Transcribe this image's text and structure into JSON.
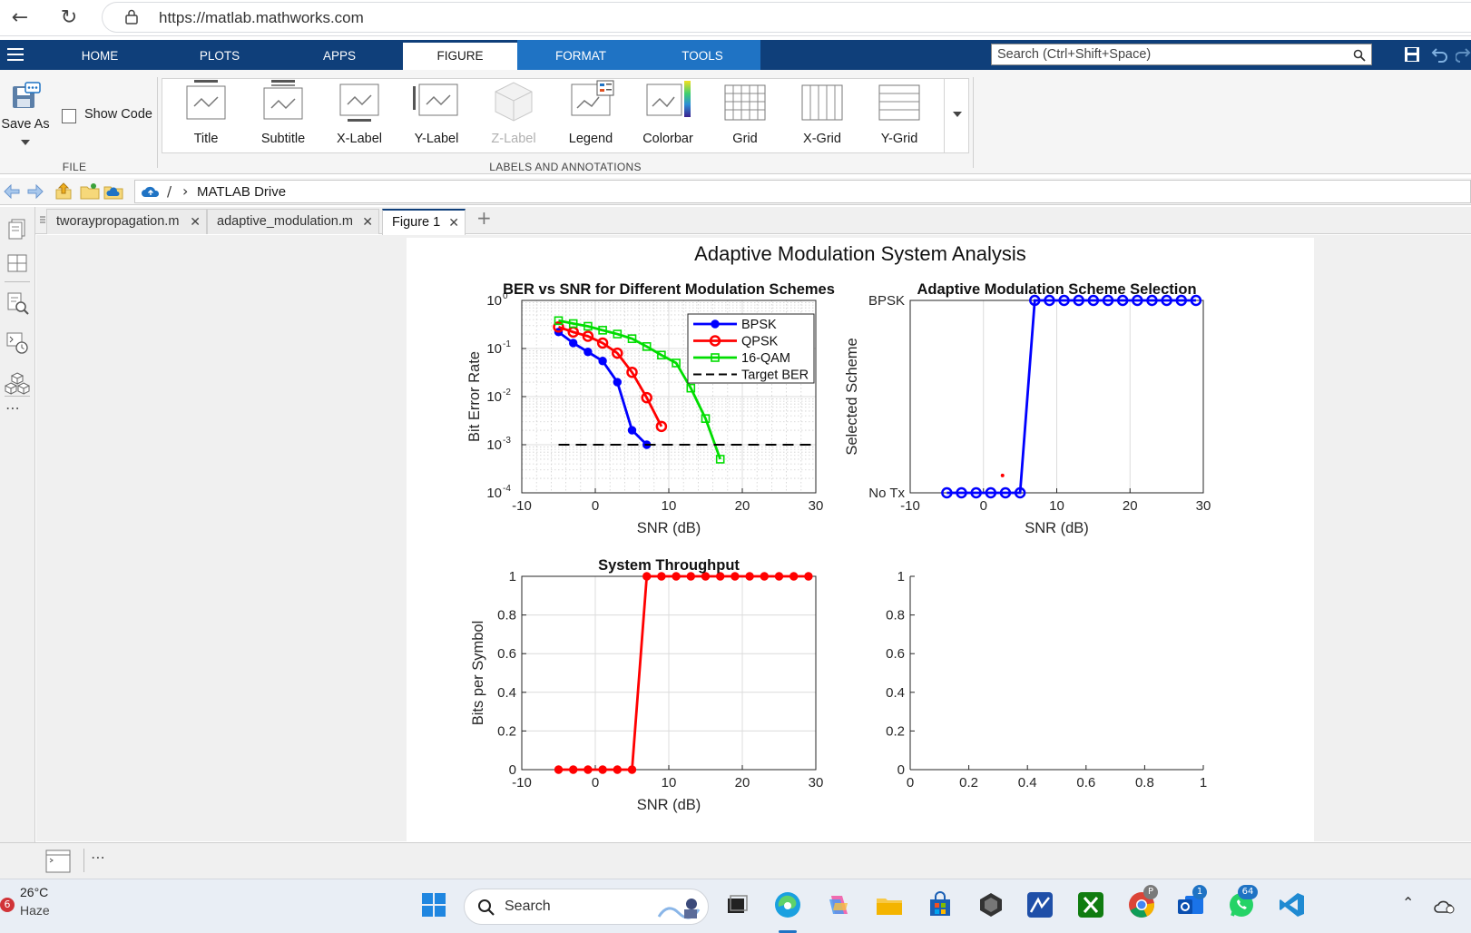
{
  "browser": {
    "url": "https://matlab.mathworks.com"
  },
  "tabs": [
    {
      "label": "HOME"
    },
    {
      "label": "PLOTS"
    },
    {
      "label": "APPS"
    },
    {
      "label": "FIGURE"
    },
    {
      "label": "FORMAT"
    },
    {
      "label": "TOOLS"
    }
  ],
  "search": {
    "placeholder": "Search (Ctrl+Shift+Space)"
  },
  "ribbon": {
    "save_as": "Save As",
    "show_code": "Show Code",
    "file_group": "FILE",
    "labels_group": "LABELS AND ANNOTATIONS",
    "buttons": [
      {
        "label": "Title"
      },
      {
        "label": "Subtitle"
      },
      {
        "label": "X-Label"
      },
      {
        "label": "Y-Label"
      },
      {
        "label": "Z-Label"
      },
      {
        "label": "Legend"
      },
      {
        "label": "Colorbar"
      },
      {
        "label": "Grid"
      },
      {
        "label": "X-Grid"
      },
      {
        "label": "Y-Grid"
      }
    ]
  },
  "address": {
    "sep": "/",
    "chev": "›",
    "path": "MATLAB Drive"
  },
  "doc_tabs": [
    {
      "label": "tworaypropagation.m"
    },
    {
      "label": "adaptive_modulation.m"
    },
    {
      "label": "Figure 1"
    }
  ],
  "figure": {
    "suptitle": "Adaptive Modulation System Analysis",
    "plots": {
      "ber": {
        "title": "BER vs SNR for Different Modulation Schemes",
        "xlabel": "SNR (dB)",
        "ylabel": "Bit Error Rate",
        "xticks": [
          "-10",
          "0",
          "10",
          "20",
          "30"
        ],
        "yticks_base": "10",
        "yticks_exp": [
          "0",
          "-1",
          "-2",
          "-3",
          "-4"
        ],
        "legend": [
          "BPSK",
          "QPSK",
          "16-QAM",
          "Target BER"
        ]
      },
      "sel": {
        "title": "Adaptive Modulation Scheme Selection",
        "xlabel": "SNR (dB)",
        "ylabel": "Selected Scheme",
        "xticks": [
          "-10",
          "0",
          "10",
          "20",
          "30"
        ],
        "yticks": [
          "BPSK",
          "No Tx"
        ]
      },
      "thr": {
        "title": "System Throughput",
        "xlabel": "SNR (dB)",
        "ylabel": "Bits per Symbol",
        "xticks": [
          "-10",
          "0",
          "10",
          "20",
          "30"
        ],
        "yticks": [
          "1",
          "0.8",
          "0.6",
          "0.4",
          "0.2",
          "0"
        ]
      },
      "empty": {
        "xticks": [
          "0",
          "0.2",
          "0.4",
          "0.6",
          "0.8",
          "1"
        ],
        "yticks": [
          "1",
          "0.8",
          "0.6",
          "0.4",
          "0.2",
          "0"
        ]
      }
    }
  },
  "chart_data": [
    {
      "type": "line",
      "title": "BER vs SNR for Different Modulation Schemes",
      "xlabel": "SNR (dB)",
      "ylabel": "Bit Error Rate",
      "xlim": [
        -10,
        30
      ],
      "ylim": [
        0.0001,
        1
      ],
      "yscale": "log",
      "grid": true,
      "legend_position": "top-right",
      "series": [
        {
          "name": "BPSK",
          "color": "#0000ff",
          "marker": "filled-circle",
          "x": [
            -5,
            -3,
            -1,
            1,
            3,
            5,
            7
          ],
          "y": [
            0.22,
            0.13,
            0.085,
            0.055,
            0.02,
            0.002,
            0.001
          ]
        },
        {
          "name": "QPSK",
          "color": "#ff0000",
          "marker": "open-circle",
          "x": [
            -5,
            -3,
            -1,
            1,
            3,
            5,
            7,
            9
          ],
          "y": [
            0.28,
            0.22,
            0.18,
            0.13,
            0.08,
            0.032,
            0.0095,
            0.0024
          ]
        },
        {
          "name": "16-QAM",
          "color": "#00dd00",
          "marker": "open-square",
          "x": [
            -5,
            -3,
            -1,
            1,
            3,
            5,
            7,
            9,
            11,
            13,
            15,
            17
          ],
          "y": [
            0.38,
            0.33,
            0.29,
            0.24,
            0.2,
            0.16,
            0.11,
            0.073,
            0.05,
            0.015,
            0.0035,
            0.0005
          ]
        },
        {
          "name": "Target BER",
          "color": "#000000",
          "style": "dashed",
          "x": [
            -5,
            30
          ],
          "y": [
            0.001,
            0.001
          ]
        }
      ]
    },
    {
      "type": "line",
      "title": "Adaptive Modulation Scheme Selection",
      "xlabel": "SNR (dB)",
      "ylabel": "Selected Scheme",
      "xlim": [
        -10,
        30
      ],
      "ylim": [
        0,
        1
      ],
      "ytick_labels": [
        "No Tx",
        "BPSK"
      ],
      "series": [
        {
          "color": "#0000ff",
          "marker": "open-circle",
          "x": [
            -5,
            -3,
            -1,
            1,
            3,
            5,
            7,
            9,
            11,
            13,
            15,
            17,
            19,
            21,
            23,
            25,
            27,
            29
          ],
          "y": [
            0,
            0,
            0,
            0,
            0,
            0,
            1,
            1,
            1,
            1,
            1,
            1,
            1,
            1,
            1,
            1,
            1,
            1
          ]
        }
      ]
    },
    {
      "type": "line",
      "title": "System Throughput",
      "xlabel": "SNR (dB)",
      "ylabel": "Bits per Symbol",
      "xlim": [
        -10,
        30
      ],
      "ylim": [
        0,
        1
      ],
      "grid": true,
      "series": [
        {
          "color": "#ff0000",
          "marker": "filled-circle",
          "x": [
            -5,
            -3,
            -1,
            1,
            3,
            5,
            7,
            9,
            11,
            13,
            15,
            17,
            19,
            21,
            23,
            25,
            27,
            29
          ],
          "y": [
            0,
            0,
            0,
            0,
            0,
            0,
            1,
            1,
            1,
            1,
            1,
            1,
            1,
            1,
            1,
            1,
            1,
            1
          ]
        }
      ]
    },
    {
      "type": "line",
      "xlim": [
        0,
        1
      ],
      "ylim": [
        0,
        1
      ],
      "series": []
    }
  ],
  "taskbar": {
    "weather_temp": "26°C",
    "weather_desc": "Haze",
    "weather_badge": "6",
    "search": "Search",
    "badge_outlook": "1",
    "badge_whatsapp": "64",
    "badge_chrome": "P"
  }
}
